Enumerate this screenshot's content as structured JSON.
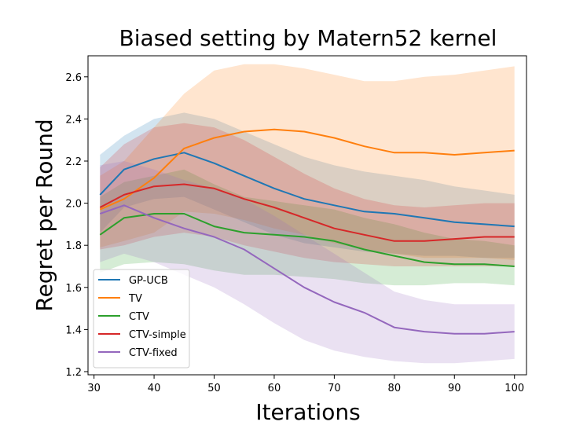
{
  "chart_data": {
    "type": "line",
    "title": "Biased setting by Matern52 kernel",
    "xlabel": "Iterations",
    "ylabel": "Regret per Round",
    "xlim": [
      29,
      102
    ],
    "ylim": [
      1.185,
      2.7
    ],
    "xticks": [
      30,
      40,
      50,
      60,
      70,
      80,
      90,
      100
    ],
    "yticks": [
      1.2,
      1.4,
      1.6,
      1.8,
      2.0,
      2.2,
      2.4,
      2.6
    ],
    "legend_position": "lower-left",
    "grid": false,
    "x": [
      31,
      35,
      40,
      45,
      50,
      55,
      60,
      65,
      70,
      75,
      80,
      85,
      90,
      95,
      100
    ],
    "series": [
      {
        "name": "GP-UCB",
        "color": "#1f77b4",
        "values": [
          2.04,
          2.16,
          2.21,
          2.24,
          2.19,
          2.13,
          2.07,
          2.02,
          1.99,
          1.96,
          1.95,
          1.93,
          1.91,
          1.9,
          1.89
        ],
        "lower": [
          1.86,
          1.98,
          2.02,
          2.03,
          1.97,
          1.91,
          1.85,
          1.81,
          1.79,
          1.77,
          1.76,
          1.75,
          1.75,
          1.74,
          1.74
        ],
        "upper": [
          2.23,
          2.32,
          2.4,
          2.43,
          2.4,
          2.34,
          2.28,
          2.22,
          2.18,
          2.15,
          2.13,
          2.11,
          2.08,
          2.06,
          2.04
        ]
      },
      {
        "name": "TV",
        "color": "#ff7f0e",
        "values": [
          1.97,
          2.02,
          2.12,
          2.26,
          2.31,
          2.34,
          2.35,
          2.34,
          2.31,
          2.27,
          2.24,
          2.24,
          2.23,
          2.24,
          2.25
        ],
        "lower": [
          1.79,
          1.82,
          1.86,
          1.96,
          1.95,
          1.92,
          1.88,
          1.85,
          1.81,
          1.78,
          1.76,
          1.74,
          1.74,
          1.74,
          1.73
        ],
        "upper": [
          2.13,
          2.2,
          2.36,
          2.52,
          2.63,
          2.66,
          2.66,
          2.64,
          2.61,
          2.58,
          2.58,
          2.6,
          2.61,
          2.63,
          2.65
        ]
      },
      {
        "name": "CTV",
        "color": "#2ca02c",
        "values": [
          1.85,
          1.93,
          1.95,
          1.95,
          1.89,
          1.86,
          1.85,
          1.84,
          1.82,
          1.78,
          1.75,
          1.72,
          1.71,
          1.71,
          1.7
        ],
        "lower": [
          1.67,
          1.71,
          1.72,
          1.71,
          1.68,
          1.66,
          1.66,
          1.65,
          1.64,
          1.62,
          1.61,
          1.61,
          1.62,
          1.62,
          1.61
        ],
        "upper": [
          2.03,
          2.1,
          2.13,
          2.16,
          2.09,
          2.03,
          2.01,
          1.99,
          1.97,
          1.93,
          1.9,
          1.86,
          1.83,
          1.82,
          1.8
        ]
      },
      {
        "name": "CTV-simple",
        "color": "#d62728",
        "values": [
          1.98,
          2.04,
          2.08,
          2.09,
          2.07,
          2.02,
          1.98,
          1.93,
          1.88,
          1.85,
          1.82,
          1.82,
          1.83,
          1.84,
          1.84
        ],
        "lower": [
          1.78,
          1.8,
          1.84,
          1.86,
          1.84,
          1.8,
          1.77,
          1.74,
          1.72,
          1.71,
          1.7,
          1.7,
          1.7,
          1.7,
          1.7
        ],
        "upper": [
          2.17,
          2.28,
          2.36,
          2.38,
          2.36,
          2.3,
          2.22,
          2.14,
          2.07,
          2.02,
          1.99,
          1.98,
          1.99,
          2.0,
          2.0
        ]
      },
      {
        "name": "CTV-fixed",
        "color": "#9467bd",
        "values": [
          1.95,
          1.99,
          1.93,
          1.88,
          1.84,
          1.78,
          1.69,
          1.6,
          1.53,
          1.48,
          1.41,
          1.39,
          1.38,
          1.38,
          1.39
        ],
        "lower": [
          1.72,
          1.76,
          1.72,
          1.66,
          1.6,
          1.52,
          1.43,
          1.35,
          1.3,
          1.27,
          1.25,
          1.24,
          1.24,
          1.25,
          1.26
        ],
        "upper": [
          2.18,
          2.2,
          2.16,
          2.11,
          2.07,
          2.02,
          1.94,
          1.85,
          1.76,
          1.67,
          1.58,
          1.54,
          1.52,
          1.52,
          1.52
        ]
      }
    ]
  }
}
